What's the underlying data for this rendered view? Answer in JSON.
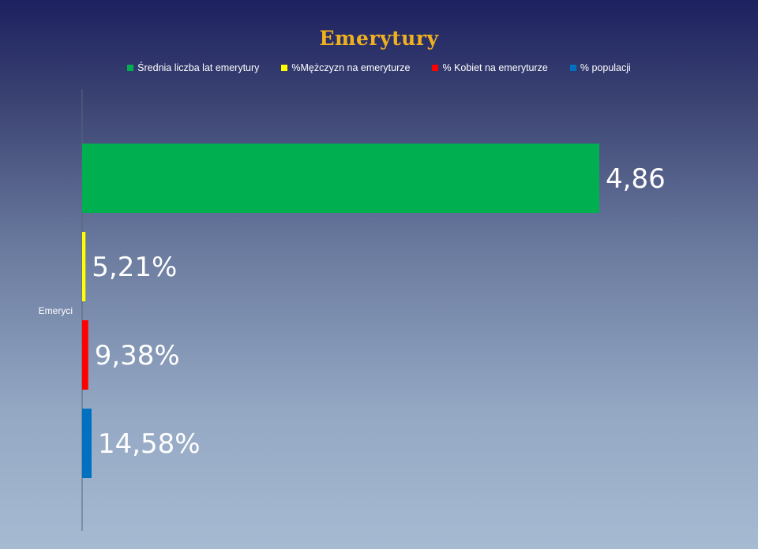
{
  "chart_data": {
    "type": "bar",
    "orientation": "horizontal",
    "title": "Emerytury",
    "categories": [
      "Emeryci"
    ],
    "series": [
      {
        "name": "Średnia liczba lat emerytury",
        "values": [
          4.86
        ],
        "label": "4,86",
        "color": "#00b050"
      },
      {
        "name": "%Mężczyzn na emeryturze",
        "values": [
          5.21
        ],
        "label": "5,21%",
        "color": "#ffff00"
      },
      {
        "name": "% Kobiet na emeryturze",
        "values": [
          9.38
        ],
        "label": "9,38%",
        "color": "#ff0000"
      },
      {
        "name": "% populacji",
        "values": [
          14.58
        ],
        "label": "14,58%",
        "color": "#0070c0"
      }
    ],
    "legend_position": "top",
    "grid": false,
    "xaxis_visible": false
  }
}
